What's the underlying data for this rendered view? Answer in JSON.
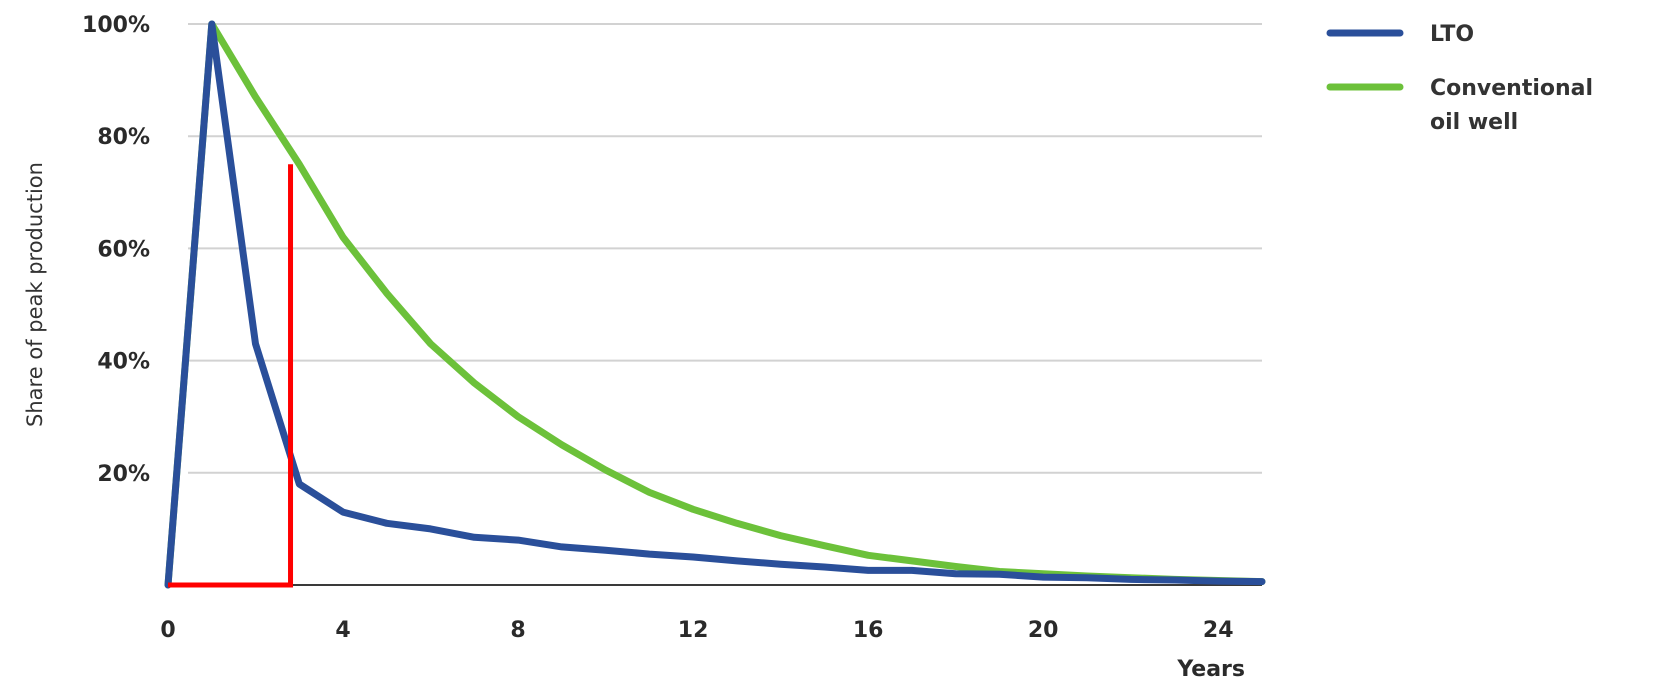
{
  "chart_data": {
    "type": "line",
    "ylabel": "Share of peak production",
    "xlabel": "Years",
    "xlim": [
      0,
      25
    ],
    "ylim": [
      0,
      100
    ],
    "x_ticks": [
      0,
      4,
      8,
      12,
      16,
      20,
      24
    ],
    "x_tick_labels": [
      "0",
      "4",
      "8",
      "12",
      "16",
      "20",
      "24"
    ],
    "y_ticks": [
      20,
      40,
      60,
      80,
      100
    ],
    "y_tick_labels": [
      "20%",
      "40%",
      "60%",
      "80%",
      "100%"
    ],
    "grid": true,
    "legend_position": "right",
    "series": [
      {
        "name": "LTO",
        "color": "#2a4f9a",
        "x": [
          0,
          1,
          2,
          3,
          4,
          5,
          6,
          7,
          8,
          9,
          10,
          11,
          12,
          13,
          14,
          15,
          16,
          17,
          18,
          19,
          20,
          21,
          22,
          23,
          24,
          25
        ],
        "y": [
          0,
          100,
          43,
          18,
          13,
          11,
          10,
          8.5,
          8,
          6.8,
          6.2,
          5.5,
          5,
          4.3,
          3.7,
          3.2,
          2.6,
          2.6,
          2,
          1.9,
          1.4,
          1.3,
          1.0,
          0.9,
          0.7,
          0.6
        ]
      },
      {
        "name": "Conventional oil well",
        "color": "#6cc13a",
        "x": [
          0,
          1,
          2,
          3,
          4,
          5,
          6,
          7,
          8,
          9,
          10,
          11,
          12,
          13,
          14,
          15,
          16,
          17,
          18,
          19,
          20,
          21,
          22,
          23,
          24,
          25
        ],
        "y": [
          0,
          100,
          87,
          75,
          62,
          52,
          43,
          36,
          30,
          25,
          20.5,
          16.5,
          13.5,
          11,
          8.8,
          7,
          5.3,
          4.3,
          3.3,
          2.4,
          2.0,
          1.6,
          1.3,
          1.0,
          0.8,
          0.6
        ]
      }
    ],
    "annotation": {
      "color": "#ff0000",
      "x_from": 0,
      "x_to": 2.8,
      "y_top": 75
    }
  }
}
